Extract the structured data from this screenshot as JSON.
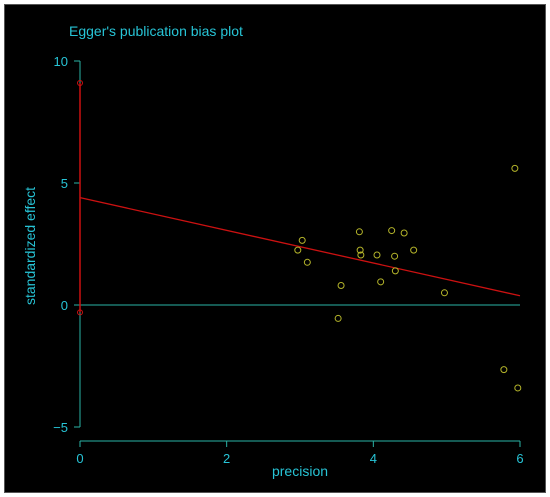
{
  "chart_data": {
    "type": "scatter",
    "title": "Egger's publication bias plot",
    "xlabel": "precision",
    "ylabel": "standardized effect",
    "xlim": [
      0,
      6
    ],
    "ylim": [
      -5,
      10
    ],
    "xticks": [
      0,
      2,
      4,
      6
    ],
    "yticks": [
      -5,
      0,
      5,
      10
    ],
    "grid": false,
    "points": [
      {
        "x": 2.97,
        "y": 2.25
      },
      {
        "x": 3.03,
        "y": 2.65
      },
      {
        "x": 3.1,
        "y": 1.75
      },
      {
        "x": 3.52,
        "y": -0.55
      },
      {
        "x": 3.56,
        "y": 0.8
      },
      {
        "x": 3.81,
        "y": 3.0
      },
      {
        "x": 3.82,
        "y": 2.25
      },
      {
        "x": 3.83,
        "y": 2.05
      },
      {
        "x": 4.05,
        "y": 2.05
      },
      {
        "x": 4.1,
        "y": 0.95
      },
      {
        "x": 4.25,
        "y": 3.05
      },
      {
        "x": 4.29,
        "y": 2.0
      },
      {
        "x": 4.3,
        "y": 1.4
      },
      {
        "x": 4.42,
        "y": 2.95
      },
      {
        "x": 4.55,
        "y": 2.25
      },
      {
        "x": 4.97,
        "y": 0.5
      },
      {
        "x": 5.78,
        "y": -2.65
      },
      {
        "x": 5.93,
        "y": 5.6
      },
      {
        "x": 5.97,
        "y": -3.4
      }
    ],
    "regression_line": {
      "intercept": 4.4,
      "slope": -0.67
    },
    "intercept_ci": {
      "x": 0,
      "lower": -0.3,
      "upper": 9.1
    },
    "colors": {
      "background": "#000000",
      "axes": "#2ab3a6",
      "text": "#27c4d6",
      "points": "#b5b52a",
      "regression": "#cc1111",
      "ci": "#cc1111"
    }
  }
}
